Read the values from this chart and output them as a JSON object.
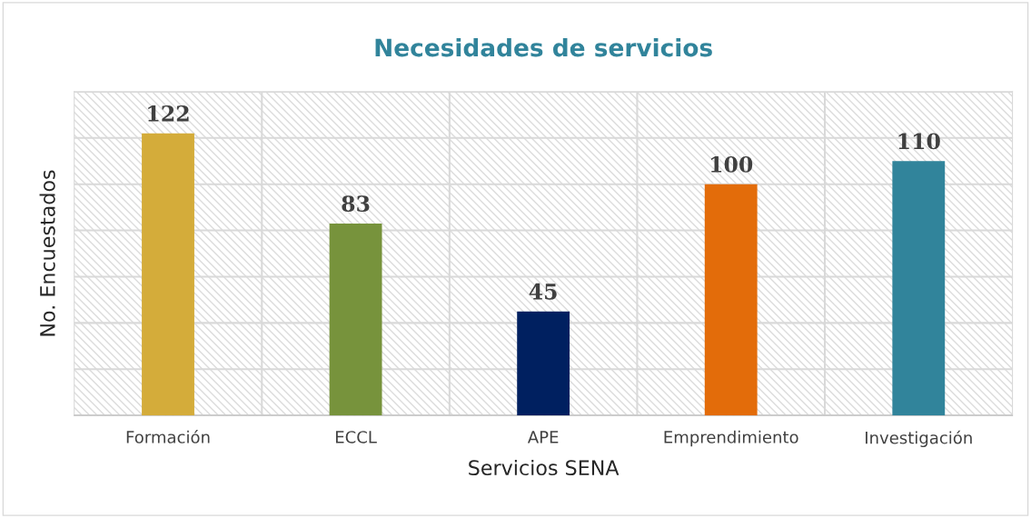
{
  "chart_data": {
    "type": "bar",
    "title": "Necesidades de servicios",
    "xlabel": "Servicios SENA",
    "ylabel": "No. Encuestados",
    "categories": [
      "Formación",
      "ECCL",
      "APE",
      "Emprendimiento",
      "Investigación"
    ],
    "values": [
      122,
      83,
      45,
      100,
      110
    ],
    "colors": [
      "#d4ac3a",
      "#77933c",
      "#002060",
      "#e36c0a",
      "#31849b"
    ],
    "ylim": [
      0,
      140
    ],
    "yticks": [
      {
        "value": 0,
        "label": null
      },
      {
        "value": 20,
        "label": null
      },
      {
        "value": 40,
        "label": null
      },
      {
        "value": 60,
        "label": null
      },
      {
        "value": 80,
        "label": null
      },
      {
        "value": 100,
        "label": null
      },
      {
        "value": 120,
        "label": null
      },
      {
        "value": 140,
        "label": null
      }
    ],
    "tick_labels": "x",
    "grid": true,
    "data_labels": true
  }
}
